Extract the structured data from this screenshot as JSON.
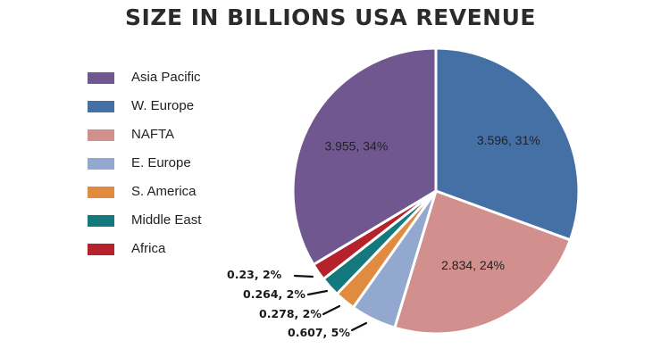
{
  "chart_data": {
    "type": "pie",
    "title": "SIZE IN BILLIONS USA REVENUE",
    "legend_position": "left",
    "slices": [
      {
        "label": "W. Europe",
        "value": 3.596,
        "percent": 31,
        "data_label": "3.596, 31%",
        "color": "#4470a6"
      },
      {
        "label": "NAFTA",
        "value": 2.834,
        "percent": 24,
        "data_label": "2.834, 24%",
        "color": "#d18f8d"
      },
      {
        "label": "E. Europe",
        "value": 0.607,
        "percent": 5,
        "data_label": "0.607, 5%",
        "color": "#93a8cf"
      },
      {
        "label": "S. America",
        "value": 0.278,
        "percent": 2,
        "data_label": "0.278, 2%",
        "color": "#e08b3f"
      },
      {
        "label": "Middle East",
        "value": 0.264,
        "percent": 2,
        "data_label": "0.264, 2%",
        "color": "#14797c"
      },
      {
        "label": "Africa",
        "value": 0.23,
        "percent": 2,
        "data_label": "0.23, 2%",
        "color": "#b5222b"
      },
      {
        "label": "Asia Pacific",
        "value": 3.955,
        "percent": 34,
        "data_label": "3.955, 34%",
        "color": "#70578f"
      }
    ],
    "legend_order": [
      "Asia Pacific",
      "W. Europe",
      "NAFTA",
      "E. Europe",
      "S. America",
      "Middle East",
      "Africa"
    ]
  }
}
